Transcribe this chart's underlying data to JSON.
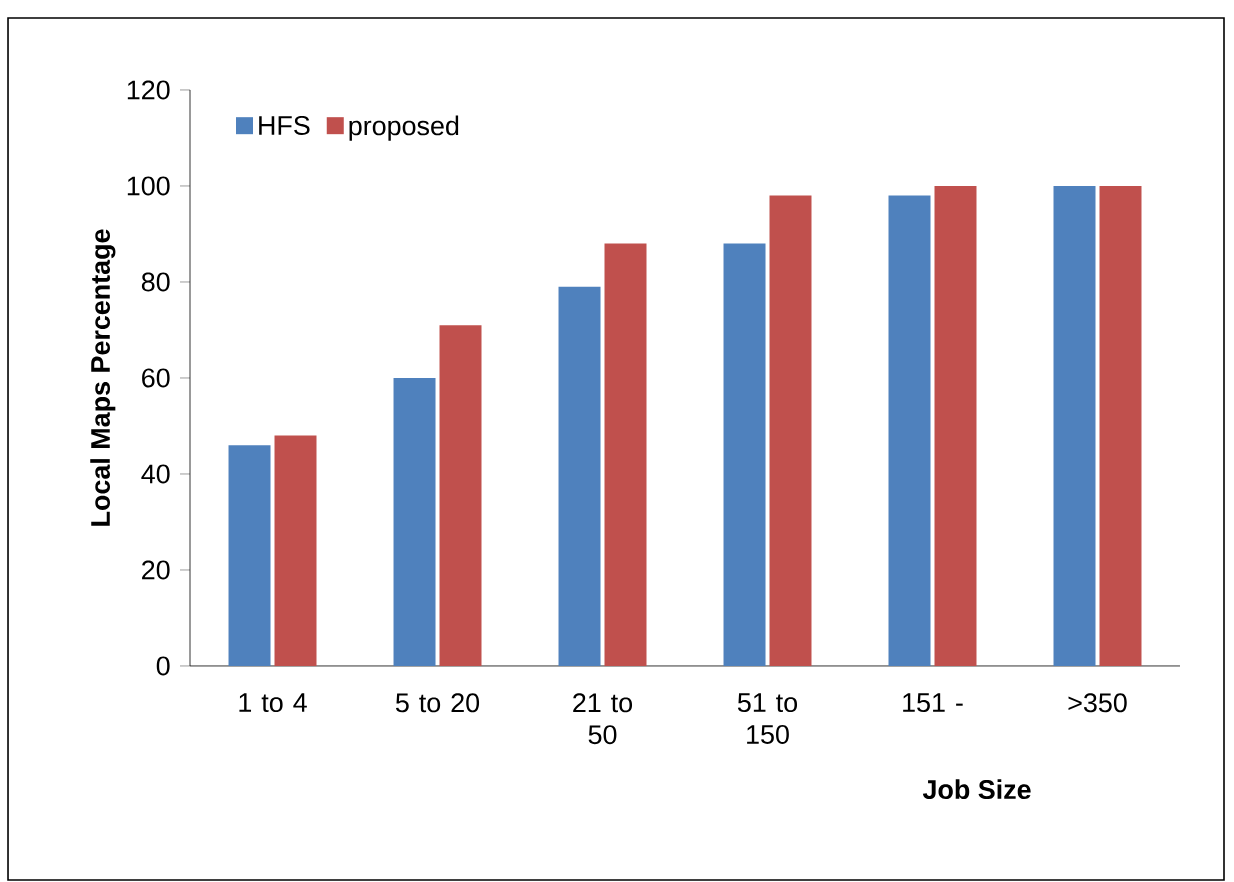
{
  "chart_data": {
    "type": "bar",
    "xlabel": "**Job Size**",
    "ylabel": "**Local Maps Percentage**",
    "categories": [
      "1 to 4",
      "5 to 20",
      "21 to 50",
      "51 to 150",
      "151 -",
      ">350"
    ],
    "series": [
      {
        "name": "HFS",
        "color": "#4f81bd",
        "values": [
          46,
          60,
          79,
          88,
          98,
          100
        ]
      },
      {
        "name": "proposed",
        "color": "#c0504d",
        "values": [
          48,
          71,
          88,
          98,
          100,
          100
        ]
      }
    ],
    "ylim": [
      0,
      120
    ],
    "yticks": [
      0,
      20,
      40,
      60,
      80,
      100,
      120
    ],
    "legend": "top left"
  }
}
